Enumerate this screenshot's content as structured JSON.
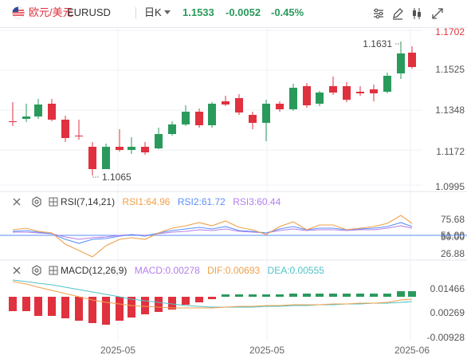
{
  "header": {
    "name": "欧元/美元",
    "symbol": "EURUSD",
    "period": "日K",
    "price": "1.1533",
    "change": "-0.0052",
    "change_pct": "-0.45%",
    "icons": [
      "settings-sliders-icon",
      "draw-pen-icon",
      "candlestick-type-icon",
      "fullscreen-icon"
    ]
  },
  "colors": {
    "up": "#2a9a5c",
    "down": "#e0313f",
    "rsi1": "#f0a04b",
    "rsi2": "#5b8ff9",
    "rsi3": "#b37feb",
    "dif": "#f0a04b",
    "dea": "#4fc3c7"
  },
  "main": {
    "y_ticks": [
      "1.1702",
      "1.1525",
      "1.1348",
      "1.1172",
      "1.0995"
    ],
    "high_label": "1.1631",
    "low_label": "1.1065"
  },
  "rsi": {
    "title": "RSI(7,14,21)",
    "rsi1": "RSI1:64.96",
    "rsi2": "RSI2:61.72",
    "rsi3": "RSI3:60.44",
    "ticks": [
      "75.68",
      "51.00",
      "50.00",
      "26.88"
    ]
  },
  "macd": {
    "title": "MACD(12,26,9)",
    "macd": "MACD:0.00278",
    "dif": "DIF:0.00693",
    "dea": "DEA:0.00555",
    "ticks": [
      "0.01466",
      "0.00269",
      "-0.00928"
    ]
  },
  "x_labels": [
    "2025-05",
    "2025-05",
    "2025-06"
  ]
}
